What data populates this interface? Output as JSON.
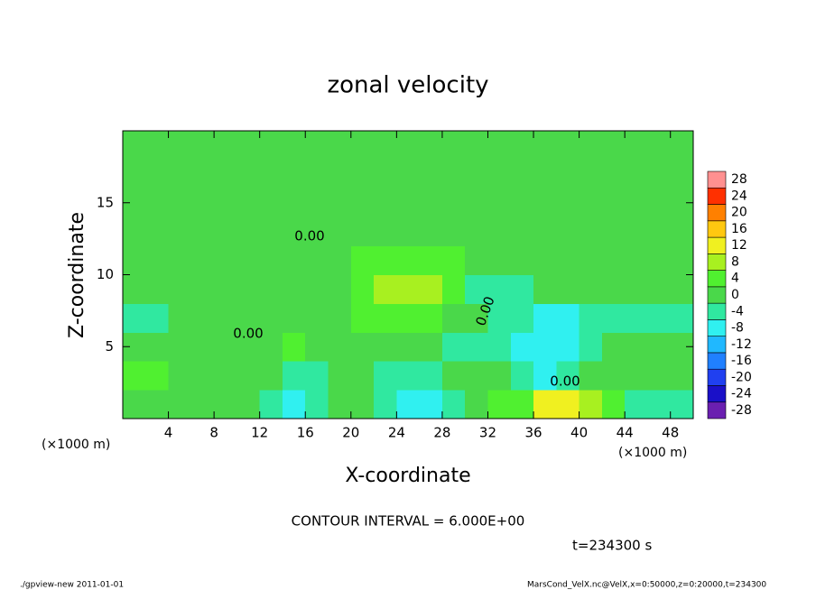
{
  "chart_data": {
    "type": "heatmap",
    "title": "zonal velocity",
    "xlabel": "X-coordinate",
    "ylabel": "Z-coordinate",
    "xunit": "(×1000 m)",
    "yunit": "(×1000 m)",
    "xlim": [
      0,
      50
    ],
    "ylim": [
      0,
      20
    ],
    "xticks": [
      4,
      8,
      12,
      16,
      20,
      24,
      28,
      32,
      36,
      40,
      44,
      48
    ],
    "yticks": [
      5,
      10,
      15
    ],
    "x": [
      1,
      3,
      5,
      7,
      9,
      11,
      13,
      15,
      17,
      19,
      21,
      23,
      25,
      27,
      29,
      31,
      33,
      35,
      37,
      39,
      41,
      43,
      45,
      47,
      49
    ],
    "y": [
      1,
      3,
      5,
      7,
      9,
      11,
      13,
      15,
      17,
      19
    ],
    "z": [
      [
        1,
        2,
        1,
        1,
        1,
        0,
        -2,
        -5,
        -3,
        1,
        0,
        -4,
        -8,
        -5,
        -1,
        2,
        5,
        6,
        12,
        13,
        11,
        4,
        -2,
        -3,
        -1
      ],
      [
        5,
        4,
        3,
        1,
        1,
        1,
        1,
        -1,
        -2,
        1,
        1,
        -3,
        -4,
        -2,
        0,
        1,
        3,
        -2,
        -5,
        -3,
        3,
        2,
        0,
        1,
        2
      ],
      [
        3,
        2,
        1,
        1,
        1,
        1,
        3,
        4,
        2,
        1,
        1,
        1,
        1,
        1,
        -2,
        -3,
        -3,
        -5,
        -7,
        -6,
        -4,
        0,
        1,
        2,
        1
      ],
      [
        -2,
        -1,
        1,
        1,
        1,
        1,
        1,
        1,
        1,
        2,
        4,
        5,
        5,
        4,
        2,
        0,
        -2,
        -2,
        -5,
        -6,
        -4,
        -1,
        -1,
        -1,
        -1
      ],
      [
        1,
        1,
        1,
        1,
        1,
        1,
        1,
        1,
        1,
        3,
        7,
        9,
        10,
        9,
        6,
        -1,
        -1,
        -1,
        1,
        1,
        1,
        1,
        1,
        1,
        1
      ],
      [
        2,
        2,
        2,
        2,
        2,
        2,
        2,
        2,
        2,
        2,
        4,
        6,
        7,
        6,
        4,
        2,
        2,
        2,
        2,
        2,
        1,
        1,
        1,
        1,
        1
      ],
      [
        2,
        2,
        2,
        2,
        2,
        2,
        2,
        2,
        2,
        2,
        2,
        3,
        3,
        3,
        2,
        2,
        2,
        2,
        2,
        2,
        2,
        2,
        2,
        2,
        2
      ],
      [
        2,
        2,
        2,
        2,
        2,
        2,
        2,
        2,
        2,
        2,
        2,
        2,
        2,
        2,
        2,
        2,
        2,
        2,
        2,
        2,
        2,
        2,
        2,
        2,
        2
      ],
      [
        1,
        1,
        1,
        1,
        1,
        1,
        1,
        1,
        1,
        1,
        1,
        1,
        1,
        1,
        1,
        1,
        1,
        1,
        1,
        1,
        1,
        1,
        1,
        1,
        1
      ],
      [
        1,
        1,
        1,
        1,
        1,
        1,
        1,
        1,
        1,
        1,
        1,
        1,
        1,
        1,
        1,
        1,
        1,
        1,
        1,
        1,
        1,
        1,
        1,
        1,
        1
      ]
    ],
    "colorbar": {
      "levels": [
        -28,
        -24,
        -20,
        -16,
        -12,
        -8,
        -4,
        0,
        4,
        8,
        12,
        16,
        20,
        24,
        28
      ],
      "colors": [
        "#6a1fb0",
        "#1a10c8",
        "#2040f0",
        "#2080ff",
        "#20b8ff",
        "#30f0f0",
        "#30e8a0",
        "#4ad84a",
        "#50f030",
        "#a8f020",
        "#f0f020",
        "#ffc810",
        "#ff8000",
        "#ff3000",
        "#ff9090"
      ]
    },
    "contour_labels": [
      "0.00",
      "0.00",
      "0.00",
      "0.00"
    ],
    "contour_interval": "CONTOUR INTERVAL = 6.000E+00",
    "time_label": "t=234300 s",
    "footer_left": "./gpview-new  2011-01-01",
    "footer_right": "MarsCond_VelX.nc@VelX,x=0:50000,z=0:20000,t=234300"
  }
}
